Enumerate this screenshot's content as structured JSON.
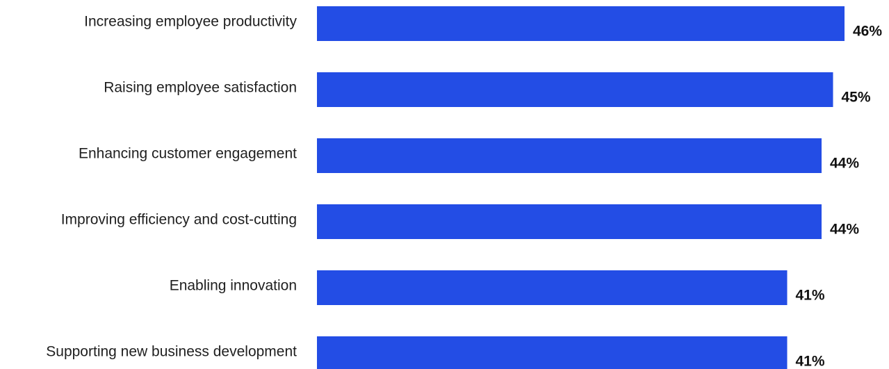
{
  "chart_data": {
    "type": "bar",
    "orientation": "horizontal",
    "categories": [
      "Increasing employee productivity",
      "Raising employee satisfaction",
      "Enhancing customer engagement",
      "Improving efficiency and cost-cutting",
      "Enabling innovation",
      "Supporting new business development"
    ],
    "values": [
      46,
      45,
      44,
      44,
      41,
      41
    ],
    "data_labels": [
      "46%",
      "45%",
      "44%",
      "44%",
      "41%",
      "41%"
    ],
    "value_unit": "%",
    "grid": false,
    "legend": "none",
    "bar_color": "#234de5"
  }
}
